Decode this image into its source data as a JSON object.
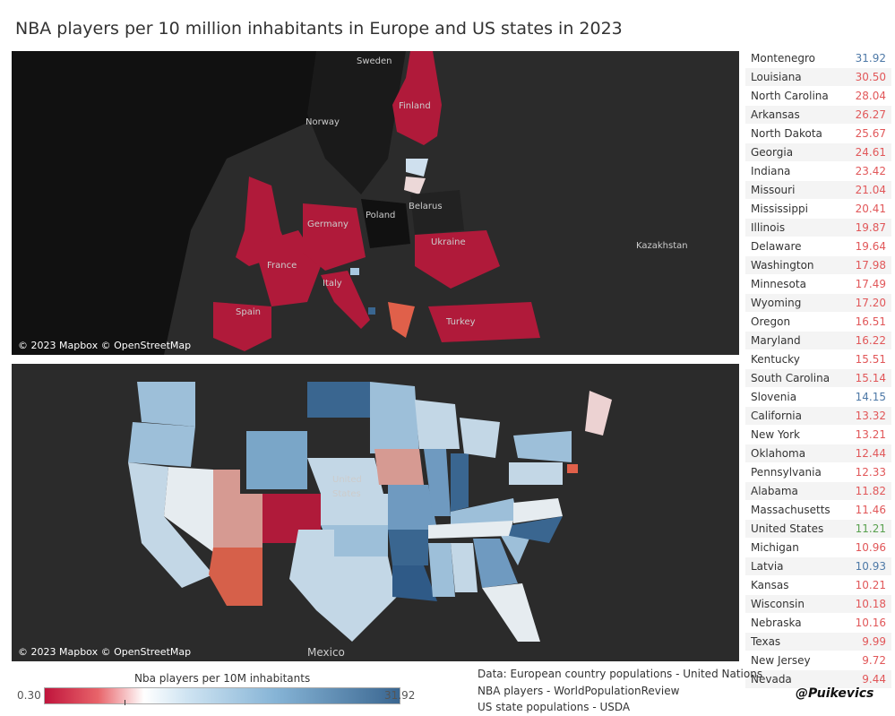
{
  "title": "NBA players per 10 million inhabitants in Europe and US states in 2023",
  "europe_map": {
    "attribution": "© 2023 Mapbox © OpenStreetMap",
    "labels": [
      "Sweden",
      "Norway",
      "Finland",
      "Poland",
      "Belarus",
      "Germany",
      "France",
      "Ukraine",
      "Kazakhstan",
      "Italy",
      "Spain",
      "Turkey"
    ]
  },
  "us_map": {
    "attribution": "© 2023 Mapbox © OpenStreetMap",
    "labels": [
      "United",
      "States",
      "Mexico"
    ]
  },
  "colors": {
    "europe": "#4e79a7",
    "us_state": "#e15759",
    "us_total": "#59a14f"
  },
  "table": [
    {
      "name": "Montenegro",
      "value": "31.92",
      "type": "europe"
    },
    {
      "name": "Louisiana",
      "value": "30.50",
      "type": "us_state"
    },
    {
      "name": "North Carolina",
      "value": "28.04",
      "type": "us_state"
    },
    {
      "name": "Arkansas",
      "value": "26.27",
      "type": "us_state"
    },
    {
      "name": "North Dakota",
      "value": "25.67",
      "type": "us_state"
    },
    {
      "name": "Georgia",
      "value": "24.61",
      "type": "us_state"
    },
    {
      "name": "Indiana",
      "value": "23.42",
      "type": "us_state"
    },
    {
      "name": "Missouri",
      "value": "21.04",
      "type": "us_state"
    },
    {
      "name": "Mississippi",
      "value": "20.41",
      "type": "us_state"
    },
    {
      "name": "Illinois",
      "value": "19.87",
      "type": "us_state"
    },
    {
      "name": "Delaware",
      "value": "19.64",
      "type": "us_state"
    },
    {
      "name": "Washington",
      "value": "17.98",
      "type": "us_state"
    },
    {
      "name": "Minnesota",
      "value": "17.49",
      "type": "us_state"
    },
    {
      "name": "Wyoming",
      "value": "17.20",
      "type": "us_state"
    },
    {
      "name": "Oregon",
      "value": "16.51",
      "type": "us_state"
    },
    {
      "name": "Maryland",
      "value": "16.22",
      "type": "us_state"
    },
    {
      "name": "Kentucky",
      "value": "15.51",
      "type": "us_state"
    },
    {
      "name": "South Carolina",
      "value": "15.14",
      "type": "us_state"
    },
    {
      "name": "Slovenia",
      "value": "14.15",
      "type": "europe"
    },
    {
      "name": "California",
      "value": "13.32",
      "type": "us_state"
    },
    {
      "name": "New York",
      "value": "13.21",
      "type": "us_state"
    },
    {
      "name": "Oklahoma",
      "value": "12.44",
      "type": "us_state"
    },
    {
      "name": "Pennsylvania",
      "value": "12.33",
      "type": "us_state"
    },
    {
      "name": "Alabama",
      "value": "11.82",
      "type": "us_state"
    },
    {
      "name": "Massachusetts",
      "value": "11.46",
      "type": "us_state"
    },
    {
      "name": "United States",
      "value": "11.21",
      "type": "us_total"
    },
    {
      "name": "Michigan",
      "value": "10.96",
      "type": "us_state"
    },
    {
      "name": "Latvia",
      "value": "10.93",
      "type": "europe"
    },
    {
      "name": "Kansas",
      "value": "10.21",
      "type": "us_state"
    },
    {
      "name": "Wisconsin",
      "value": "10.18",
      "type": "us_state"
    },
    {
      "name": "Nebraska",
      "value": "10.16",
      "type": "us_state"
    },
    {
      "name": "Texas",
      "value": "9.99",
      "type": "us_state"
    },
    {
      "name": "New Jersey",
      "value": "9.72",
      "type": "us_state"
    },
    {
      "name": "Nevada",
      "value": "9.44",
      "type": "us_state"
    }
  ],
  "legend": {
    "title": "Nba players per 10M inhabitants",
    "min": "0.30",
    "max": "31.92"
  },
  "sources": [
    "Data: European country populations - United Nations",
    "NBA players - WorldPopulationReview",
    "US state populations - USDA"
  ],
  "handle": "@Puikevics"
}
